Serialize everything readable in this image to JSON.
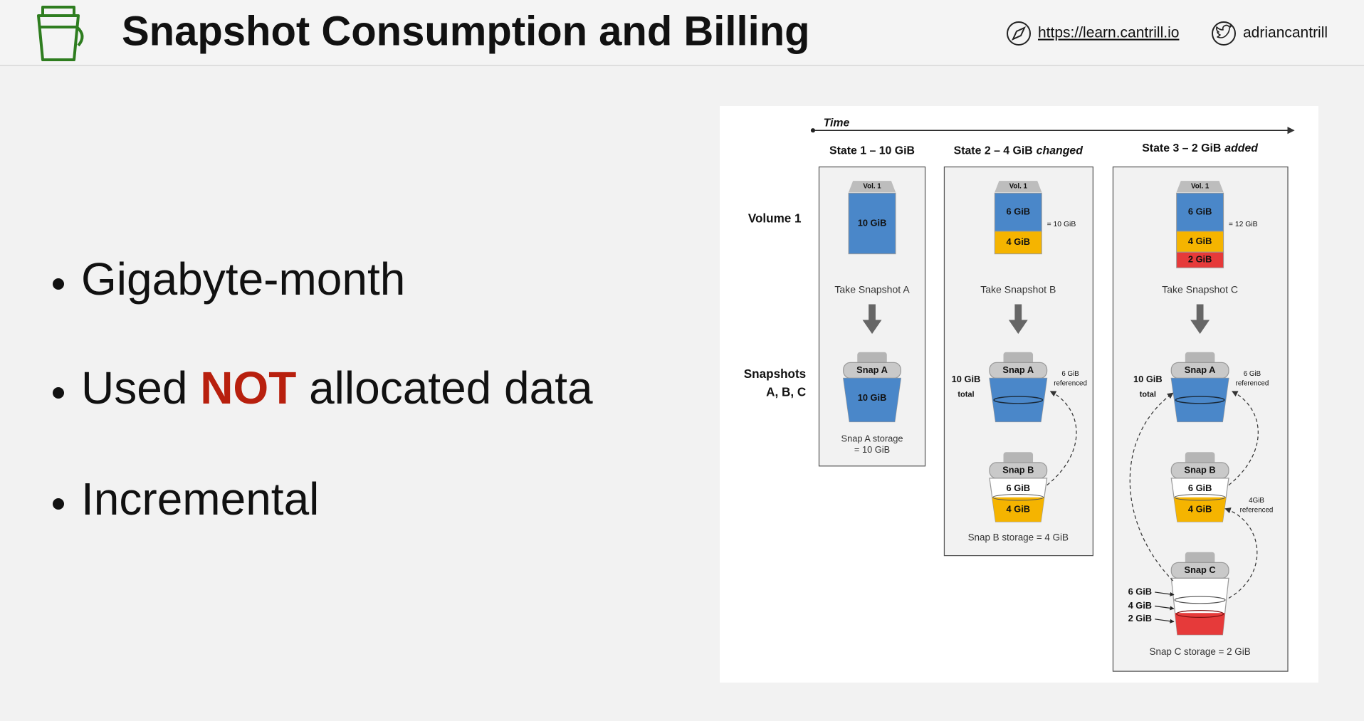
{
  "header": {
    "title": "Snapshot Consumption and Billing",
    "website": "https://learn.cantrill.io",
    "twitter": "adriancantrill"
  },
  "bullets": [
    [
      "Gigabyte-month"
    ],
    [
      "Used ",
      "NOT",
      " allocated data"
    ],
    [
      "Incremental"
    ]
  ],
  "diagram": {
    "time_label": "Time",
    "row_labels": {
      "volume": "Volume 1",
      "snapshots": [
        "Snapshots",
        "A, B, C"
      ]
    },
    "states": [
      {
        "title": "State 1 – 10 GiB",
        "volume": {
          "label": "Vol. 1",
          "segments": [
            "10 GiB"
          ]
        },
        "action": "Take Snapshot A",
        "snapshots": [
          {
            "label": "Snap A",
            "segments": [
              "10 GiB"
            ]
          }
        ],
        "storage": [
          "Snap A storage",
          "= 10 GiB"
        ]
      },
      {
        "title": "State 2 – 4 GiB",
        "title_emphasis": "changed",
        "volume": {
          "label": "Vol. 1",
          "segments": [
            "6 GiB",
            "4 GiB"
          ],
          "total": "= 10 GiB"
        },
        "action": "Take Snapshot B",
        "total_note": [
          "10 GiB",
          "total"
        ],
        "snapshots": [
          {
            "label": "Snap A",
            "note": [
              "6 GiB",
              "referenced"
            ]
          },
          {
            "label": "Snap B",
            "segments": [
              "6 GiB",
              "4 GiB"
            ]
          }
        ],
        "storage": [
          "Snap B storage = 4 GiB"
        ]
      },
      {
        "title": "State 3 – 2 GiB",
        "title_emphasis": "added",
        "volume": {
          "label": "Vol. 1",
          "segments": [
            "6 GiB",
            "4 GiB",
            "2 GiB"
          ],
          "total": "= 12 GiB"
        },
        "action": "Take Snapshot C",
        "total_note": [
          "10 GiB",
          "total"
        ],
        "snapshots": [
          {
            "label": "Snap A",
            "note": [
              "6 GiB",
              "referenced"
            ]
          },
          {
            "label": "Snap B",
            "segments": [
              "6 GiB",
              "4 GiB"
            ],
            "note": [
              "4GiB",
              "referenced"
            ]
          },
          {
            "label": "Snap C",
            "levels": [
              "6 GiB",
              "4 GiB",
              "2 GiB"
            ]
          }
        ],
        "storage": [
          "Snap C storage = 2 GiB"
        ]
      }
    ]
  }
}
